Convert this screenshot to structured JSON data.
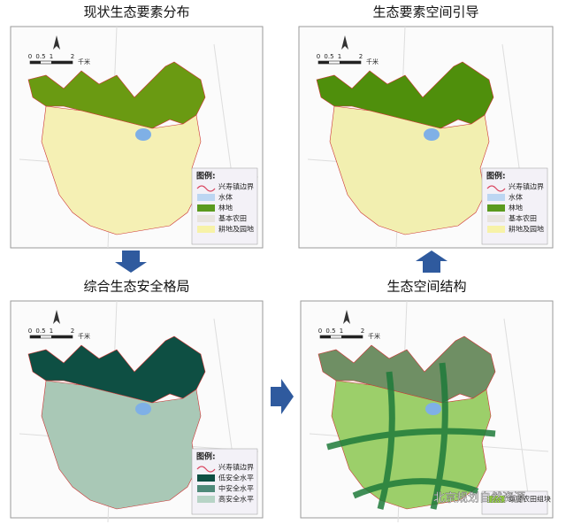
{
  "scale_labels": [
    "0",
    "0.5",
    "1",
    "2",
    "千米"
  ],
  "watermark": "北京规划自然资源",
  "panels": [
    {
      "title": "现状生态要素分布",
      "forest_color": "#6a9a12",
      "farm_color": "#f5f0b4",
      "legend_title": "图例:",
      "legend": [
        {
          "label": "兴寿镇边界",
          "color": "#d9455f"
        },
        {
          "label": "水体",
          "color": "#bcd6f2"
        },
        {
          "label": "林地",
          "color": "#5a9a1e"
        },
        {
          "label": "基本农田",
          "color": "#e8e4de"
        },
        {
          "label": "耕地及园地",
          "color": "#f7f2a8"
        }
      ]
    },
    {
      "title": "生态要素空间引导",
      "forest_color": "#4f8f0c",
      "farm_color": "#f2efb0",
      "legend_title": "图例:",
      "legend": [
        {
          "label": "兴寿镇边界",
          "color": "#d9455f"
        },
        {
          "label": "水体",
          "color": "#bcd6f2"
        },
        {
          "label": "林地",
          "color": "#5a9a1e"
        },
        {
          "label": "基本农田",
          "color": "#e8e4de"
        },
        {
          "label": "耕地及园地",
          "color": "#f7f2a8"
        }
      ]
    },
    {
      "title": "综合生态安全格局",
      "forest_color": "#0e4f43",
      "farm_color": "#a9c8b6",
      "legend_title": "图例:",
      "legend": [
        {
          "label": "兴寿镇边界",
          "color": "#d9455f"
        },
        {
          "label": "低安全水平",
          "color": "#0e4f43"
        },
        {
          "label": "中安全水平",
          "color": "#4f8a7a"
        },
        {
          "label": "高安全水平",
          "color": "#b7d4c6"
        }
      ]
    },
    {
      "title": "生态空间结构",
      "forest_color": "#6f8f64",
      "farm_color": "#9ccf6a",
      "legend_title": "",
      "legend": [
        {
          "label": "重要农田组块",
          "color": "#8dc63f"
        }
      ]
    }
  ]
}
